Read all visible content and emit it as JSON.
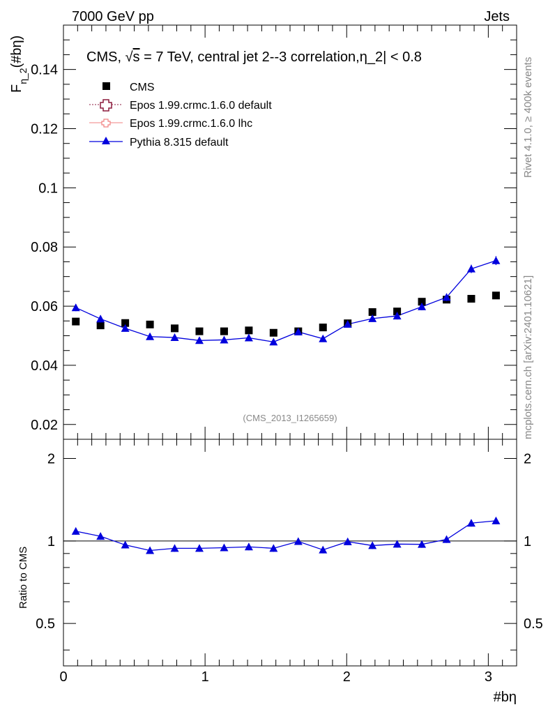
{
  "header": {
    "left": "7000 GeV pp",
    "right": "Jets"
  },
  "side_labels": {
    "rivet": "Rivet 4.1.0, ≥ 400k events",
    "mcplots": "mcplots.cern.ch [arXiv:2401.10621]"
  },
  "watermark": "(CMS_2013_I1265659)",
  "chart_data": {
    "type": "scatter",
    "title": "CMS, √s = 7 TeV, central jet 2--3 correlation,η_2| < 0.8",
    "title_parts": {
      "prefix": "CMS, ",
      "sqrt": "√",
      "s": "s",
      "suffix": " = 7 TeV, central jet 2--3 correlation,η_2| < 0.8"
    },
    "xlabel": "#bη",
    "ylabel": "F",
    "ylabel_sub": "η_2",
    "ylabel_arg": "(#bη)",
    "ratio_ylabel": "Ratio to CMS",
    "xlim": [
      0,
      3.2
    ],
    "ylim": [
      0.015,
      0.155
    ],
    "ratio_ylim": [
      0.35,
      2.35
    ],
    "x_ticks": [
      "0",
      "1",
      "2",
      "3"
    ],
    "y_ticks": [
      "0.02",
      "0.04",
      "0.06",
      "0.08",
      "0.1",
      "0.12",
      "0.14"
    ],
    "ratio_ticks": [
      "0.5",
      "1",
      "2"
    ],
    "x": [
      0.0873,
      0.2618,
      0.4363,
      0.6109,
      0.7854,
      0.9599,
      1.1345,
      1.309,
      1.4835,
      1.6581,
      1.8326,
      2.0071,
      2.1817,
      2.3562,
      2.5307,
      2.7053,
      2.8798,
      3.0543
    ],
    "series": [
      {
        "name": "CMS",
        "style": "data",
        "values": [
          0.0548,
          0.0535,
          0.0543,
          0.0538,
          0.0525,
          0.0515,
          0.0515,
          0.0518,
          0.051,
          0.0515,
          0.0528,
          0.0542,
          0.058,
          0.0582,
          0.0615,
          0.0622,
          0.0625,
          0.0636
        ],
        "color": "#000000"
      },
      {
        "name": "Epos 1.99.crmc.1.6.0 default",
        "style": "legend-only",
        "values": [],
        "color": "#8b1a3c"
      },
      {
        "name": "Epos 1.99.crmc.1.6.0 lhc",
        "style": "legend-only",
        "values": [],
        "color": "#f08080"
      },
      {
        "name": "Pythia 8.315 default",
        "style": "line-triangle",
        "values": [
          0.0595,
          0.0557,
          0.0525,
          0.0497,
          0.0494,
          0.0484,
          0.0486,
          0.0493,
          0.0479,
          0.0513,
          0.049,
          0.0539,
          0.0558,
          0.0567,
          0.0598,
          0.063,
          0.0726,
          0.0754
        ],
        "errors": [
          0.0012,
          0.0012,
          0.0011,
          0.0011,
          0.001,
          0.001,
          0.001,
          0.001,
          0.001,
          0.0011,
          0.0011,
          0.0011,
          0.0011,
          0.0012,
          0.0012,
          0.0013,
          0.0014,
          0.0015
        ],
        "ratio": [
          1.085,
          1.04,
          0.967,
          0.923,
          0.94,
          0.94,
          0.945,
          0.952,
          0.94,
          0.996,
          0.928,
          0.994,
          0.962,
          0.974,
          0.972,
          1.013,
          1.162,
          1.185
        ],
        "color": "#0000dd"
      }
    ]
  }
}
